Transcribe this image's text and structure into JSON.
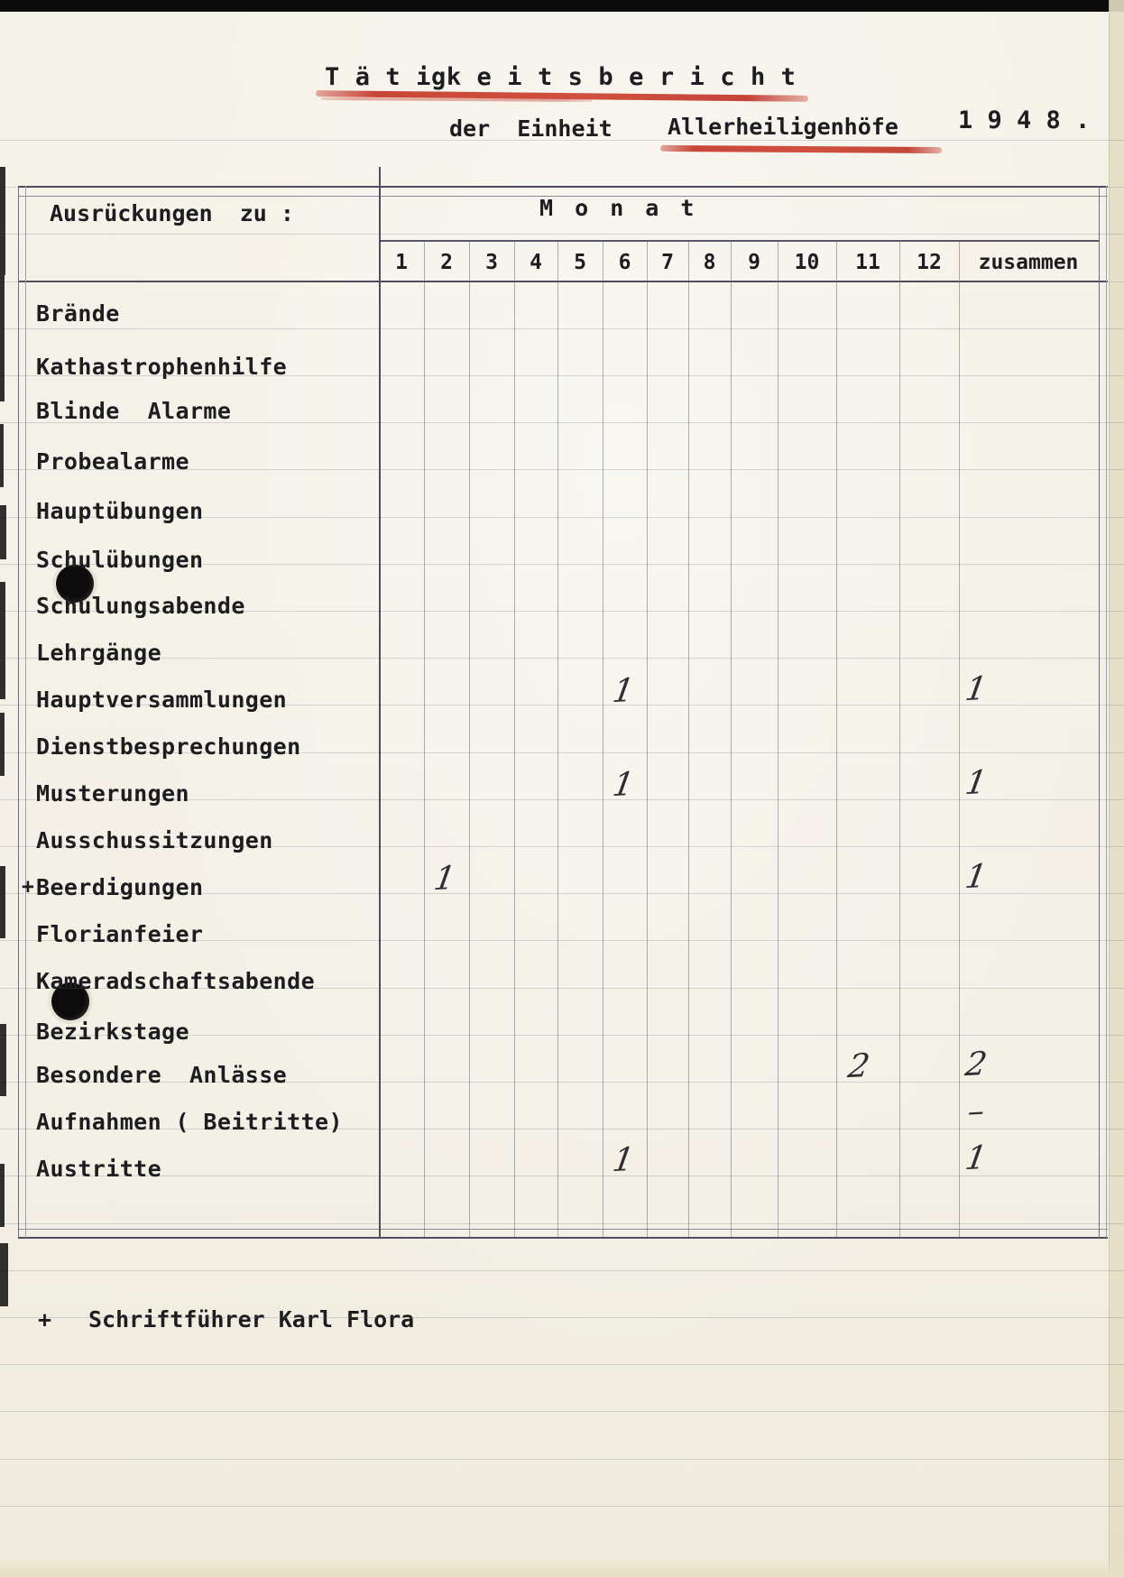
{
  "colors": {
    "accent_red": "#c9483a",
    "ink": "#1d1d21",
    "pencil_ink": "#2d2d33",
    "paper": "#f3f0e6"
  },
  "page": {
    "title": "T ä t igk e i t s b e r i c h t",
    "subtitle": {
      "prefix": "der  Einheit",
      "unit": "Allerheiligenhöfe",
      "year": "1 9 4 8 ."
    },
    "footer": {
      "marker": "+",
      "text": "Schriftführer Karl Flora"
    }
  },
  "table": {
    "corner_header": "Ausrückungen  zu :",
    "months_header": "M o n a t",
    "month_columns": [
      "1",
      "2",
      "3",
      "4",
      "5",
      "6",
      "7",
      "8",
      "9",
      "10",
      "11",
      "12"
    ],
    "total_column_header": "zusammen",
    "rows": [
      {
        "label": "Brände",
        "values": {},
        "total": ""
      },
      {
        "label": "Kathastrophenhilfe",
        "values": {},
        "total": ""
      },
      {
        "label": "Blinde  Alarme",
        "values": {},
        "total": ""
      },
      {
        "label": "Probealarme",
        "values": {},
        "total": ""
      },
      {
        "label": "Hauptübungen",
        "values": {},
        "total": ""
      },
      {
        "label": "Schulübungen",
        "values": {},
        "total": ""
      },
      {
        "label": "Schulungsabende",
        "values": {},
        "total": ""
      },
      {
        "label": "Lehrgänge",
        "values": {},
        "total": ""
      },
      {
        "label": "Hauptversammlungen",
        "values": {
          "6": "1"
        },
        "total": "1"
      },
      {
        "label": "Dienstbesprechungen",
        "values": {},
        "total": ""
      },
      {
        "label": "Musterungen",
        "values": {
          "6": "1"
        },
        "total": "1"
      },
      {
        "label": "Ausschussitzungen",
        "values": {},
        "total": ""
      },
      {
        "label": "Beerdigungen",
        "prefix": "+",
        "values": {
          "2": "1"
        },
        "total": "1"
      },
      {
        "label": "Florianfeier",
        "values": {},
        "total": ""
      },
      {
        "label": "Kameradschaftsabende",
        "values": {},
        "total": ""
      },
      {
        "label": "Bezirkstage",
        "values": {},
        "total": ""
      },
      {
        "label": "Besondere  Anlässe",
        "values": {
          "11": "2"
        },
        "total": "2"
      },
      {
        "label": "Aufnahmen ( Beitritte)",
        "values": {},
        "total": "–"
      },
      {
        "label": "Austritte",
        "values": {
          "6": "1"
        },
        "total": "1"
      }
    ]
  }
}
